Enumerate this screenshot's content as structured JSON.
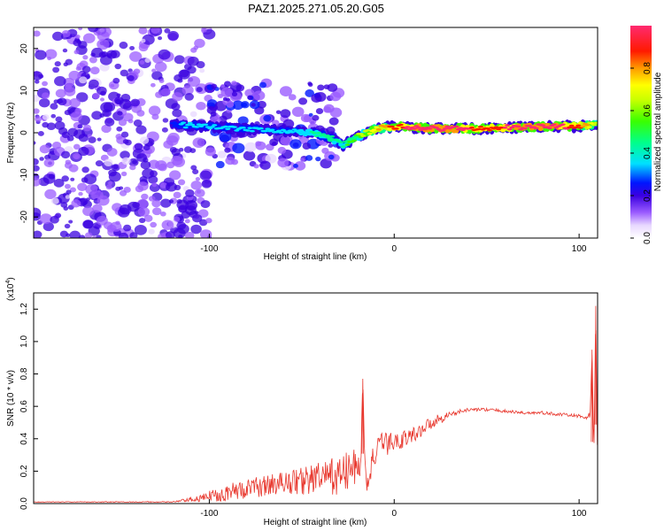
{
  "figure": {
    "title": "PAZ1.2025.271.05.20.G05"
  },
  "chart_data": [
    {
      "type": "heatmap",
      "title": "PAZ1.2025.271.05.20.G05",
      "xlabel": "Height of straight line (km)",
      "ylabel": "Frequency (Hz)",
      "xlim": [
        -195,
        110
      ],
      "ylim": [
        -25,
        25
      ],
      "xticks": [
        -100,
        0,
        100
      ],
      "yticks": [
        -20,
        -10,
        0,
        10,
        20
      ],
      "colorbar": {
        "label": "Normalized spectral amplitude",
        "range": [
          0,
          1
        ],
        "ticks": [
          "0.0",
          "0.2",
          "0.4",
          "0.6",
          "0.8"
        ]
      },
      "ridge": {
        "x": [
          -120,
          -100,
          -80,
          -60,
          -45,
          -35,
          -28,
          -20,
          -10,
          0,
          20,
          50,
          80,
          100,
          110
        ],
        "freq": [
          2,
          1.5,
          1,
          0.5,
          0,
          -1,
          -3,
          -1,
          1,
          1.5,
          1,
          1,
          1.5,
          1.5,
          2
        ],
        "amplitude": [
          0.25,
          0.3,
          0.3,
          0.3,
          0.35,
          0.45,
          0.4,
          0.55,
          0.7,
          0.85,
          0.95,
          0.85,
          0.95,
          0.85,
          0.6
        ]
      },
      "noise_region": {
        "x_range": [
          -195,
          -100
        ],
        "freq_range": [
          -25,
          25
        ],
        "amplitude_range": [
          0.05,
          0.2
        ]
      },
      "scatter_region": {
        "x_range": [
          -100,
          -30
        ],
        "freq_range": [
          -8,
          12
        ],
        "amplitude_range": [
          0.05,
          0.25
        ]
      }
    },
    {
      "type": "line",
      "xlabel": "Height of straight line (km)",
      "ylabel": "SNR (10 * v/v)",
      "exponent_label": "(x10",
      "exponent_power": "4",
      "exponent_close": ")",
      "xlim": [
        -195,
        110
      ],
      "ylim": [
        0,
        1.3
      ],
      "xticks": [
        -100,
        0,
        100
      ],
      "yticks": [
        "0.0",
        "0.2",
        "0.4",
        "0.6",
        "0.8",
        "1.0",
        "1.2"
      ],
      "series": [
        {
          "name": "SNR",
          "color": "#e8372d",
          "x": [
            -195,
            -120,
            -105,
            -95,
            -80,
            -60,
            -50,
            -40,
            -30,
            -25,
            -18,
            -17,
            -16,
            -15,
            -12,
            -10,
            -5,
            0,
            10,
            20,
            30,
            40,
            50,
            60,
            70,
            80,
            90,
            100,
            104,
            106,
            107,
            108,
            109,
            110
          ],
          "y": [
            0.01,
            0.01,
            0.03,
            0.06,
            0.09,
            0.13,
            0.14,
            0.16,
            0.17,
            0.2,
            0.25,
            0.77,
            0.3,
            0.1,
            0.25,
            0.32,
            0.37,
            0.38,
            0.42,
            0.5,
            0.55,
            0.58,
            0.58,
            0.57,
            0.56,
            0.56,
            0.55,
            0.54,
            0.53,
            0.55,
            0.95,
            0.3,
            1.22,
            0.2
          ],
          "noise": [
            0.002,
            0.003,
            0.02,
            0.05,
            0.06,
            0.07,
            0.09,
            0.1,
            0.12,
            0.13,
            0.1,
            0,
            0.05,
            0.05,
            0.08,
            0.08,
            0.08,
            0.06,
            0.05,
            0.04,
            0.02,
            0.01,
            0.01,
            0.01,
            0.01,
            0.01,
            0.01,
            0.01,
            0.01,
            0.02,
            0,
            0.05,
            0,
            0.02
          ]
        }
      ]
    }
  ]
}
